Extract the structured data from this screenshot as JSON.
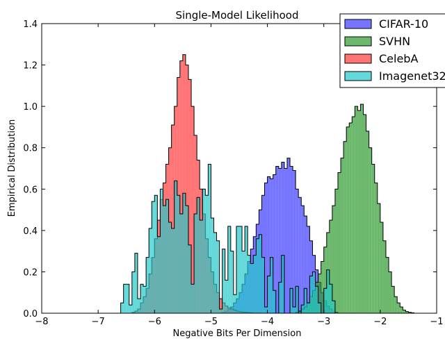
{
  "chart_data": {
    "type": "histogram",
    "title": "Single-Model Likelihood",
    "xlabel": "Negative Bits Per Dimension",
    "ylabel": "Empirical Distribution",
    "xlim": [
      -8,
      -1
    ],
    "ylim": [
      0,
      1.4
    ],
    "xticks": [
      -8,
      -7,
      -6,
      -5,
      -4,
      -3,
      -2,
      -1
    ],
    "xtick_labels": [
      "−8",
      "−7",
      "−6",
      "−5",
      "−4",
      "−3",
      "−2",
      "−1"
    ],
    "yticks": [
      0,
      0.2,
      0.4,
      0.6,
      0.8,
      1.0,
      1.2,
      1.4
    ],
    "ytick_labels": [
      "0.0",
      "0.2",
      "0.4",
      "0.6",
      "0.8",
      "1.0",
      "1.2",
      "1.4"
    ],
    "legend_position": "top-right",
    "series": [
      {
        "name": "CIFAR-10",
        "color": "#3b3bff",
        "edges": [
          -4.8,
          -4.75,
          -4.7,
          -4.65,
          -4.6,
          -4.55,
          -4.5,
          -4.45,
          -4.4,
          -4.35,
          -4.3,
          -4.25,
          -4.2,
          -4.15,
          -4.1,
          -4.05,
          -4.0,
          -3.95,
          -3.9,
          -3.85,
          -3.8,
          -3.75,
          -3.7,
          -3.65,
          -3.6,
          -3.55,
          -3.5,
          -3.45,
          -3.4,
          -3.35,
          -3.3,
          -3.25,
          -3.2,
          -3.15,
          -3.1,
          -3.05,
          -3.0,
          -2.95,
          -2.9,
          -2.85,
          -2.8,
          -2.75
        ],
        "values": [
          0.005,
          0.01,
          0.02,
          0.03,
          0.05,
          0.07,
          0.1,
          0.14,
          0.19,
          0.25,
          0.31,
          0.37,
          0.43,
          0.5,
          0.57,
          0.63,
          0.66,
          0.65,
          0.67,
          0.71,
          0.7,
          0.73,
          0.7,
          0.75,
          0.71,
          0.69,
          0.6,
          0.56,
          0.52,
          0.47,
          0.42,
          0.35,
          0.28,
          0.21,
          0.15,
          0.1,
          0.06,
          0.035,
          0.02,
          0.01,
          0.005
        ]
      },
      {
        "name": "SVHN",
        "color": "#2e9a2e",
        "edges": [
          -3.5,
          -3.45,
          -3.4,
          -3.35,
          -3.3,
          -3.25,
          -3.2,
          -3.15,
          -3.1,
          -3.05,
          -3.0,
          -2.95,
          -2.9,
          -2.85,
          -2.8,
          -2.75,
          -2.7,
          -2.65,
          -2.6,
          -2.55,
          -2.5,
          -2.45,
          -2.4,
          -2.35,
          -2.3,
          -2.25,
          -2.2,
          -2.15,
          -2.1,
          -2.05,
          -2.0,
          -1.95,
          -1.9,
          -1.85,
          -1.8,
          -1.75,
          -1.7,
          -1.65,
          -1.6,
          -1.55,
          -1.5,
          -1.45,
          -1.4
        ],
        "values": [
          0.005,
          0.01,
          0.02,
          0.03,
          0.05,
          0.08,
          0.11,
          0.15,
          0.19,
          0.25,
          0.32,
          0.39,
          0.45,
          0.52,
          0.6,
          0.68,
          0.75,
          0.83,
          0.9,
          0.92,
          0.95,
          1.0,
          0.98,
          1.01,
          0.96,
          0.88,
          0.8,
          0.72,
          0.63,
          0.53,
          0.44,
          0.35,
          0.27,
          0.2,
          0.13,
          0.08,
          0.05,
          0.03,
          0.015,
          0.008,
          0.004,
          0.002
        ]
      },
      {
        "name": "CelebA",
        "color": "#ff3b3b",
        "edges": [
          -6.4,
          -6.35,
          -6.3,
          -6.25,
          -6.2,
          -6.15,
          -6.1,
          -6.05,
          -6.0,
          -5.95,
          -5.9,
          -5.85,
          -5.8,
          -5.75,
          -5.7,
          -5.65,
          -5.6,
          -5.55,
          -5.5,
          -5.45,
          -5.4,
          -5.35,
          -5.3,
          -5.25,
          -5.2,
          -5.15,
          -5.1,
          -5.05,
          -5.0,
          -4.95,
          -4.9,
          -4.85,
          -4.8,
          -4.75,
          -4.7,
          -4.65,
          -4.6,
          -4.55,
          -4.5,
          -4.45,
          -4.4,
          -4.35,
          -4.3,
          -4.25,
          -4.2,
          -4.15,
          -4.1
        ],
        "values": [
          0.004,
          0.01,
          0.02,
          0.05,
          0.08,
          0.12,
          0.19,
          0.27,
          0.36,
          0.45,
          0.55,
          0.63,
          0.72,
          0.8,
          0.91,
          1.0,
          1.14,
          1.22,
          1.25,
          1.2,
          1.13,
          1.0,
          0.86,
          0.74,
          0.6,
          0.48,
          0.36,
          0.27,
          0.2,
          0.14,
          0.1,
          0.07,
          0.05,
          0.035,
          0.025,
          0.02,
          0.015,
          0.01,
          0.007,
          0.005,
          0.004,
          0.003,
          0.002,
          0.001,
          0.001,
          0.001
        ]
      },
      {
        "name": "Imagenet32",
        "color": "#23c9c9",
        "edges": [
          -6.6,
          -6.55,
          -6.5,
          -6.45,
          -6.4,
          -6.35,
          -6.3,
          -6.25,
          -6.2,
          -6.15,
          -6.1,
          -6.05,
          -6.0,
          -5.95,
          -5.9,
          -5.85,
          -5.8,
          -5.75,
          -5.7,
          -5.65,
          -5.6,
          -5.55,
          -5.5,
          -5.45,
          -5.4,
          -5.35,
          -5.3,
          -5.25,
          -5.2,
          -5.15,
          -5.1,
          -5.05,
          -5.0,
          -4.95,
          -4.9,
          -4.85,
          -4.8,
          -4.75,
          -4.7,
          -4.65,
          -4.6,
          -4.55,
          -4.5,
          -4.45,
          -4.4,
          -4.35,
          -4.3,
          -4.25,
          -4.2,
          -4.15,
          -4.1,
          -4.05,
          -4.0,
          -3.95,
          -3.9,
          -3.85,
          -3.8,
          -3.75,
          -3.7,
          -3.65,
          -3.6,
          -3.55,
          -3.5,
          -3.45,
          -3.4,
          -3.35,
          -3.3,
          -3.25,
          -3.2,
          -3.15,
          -3.1,
          -3.05,
          -3.0,
          -2.95,
          -2.9,
          -2.85,
          -2.8
        ],
        "values": [
          0.05,
          0.14,
          0.14,
          0.04,
          0.2,
          0.29,
          0.07,
          0.14,
          0.13,
          0.27,
          0.41,
          0.54,
          0.57,
          0.37,
          0.6,
          0.52,
          0.55,
          0.44,
          0.41,
          0.64,
          0.57,
          0.48,
          0.58,
          0.52,
          0.33,
          0.14,
          0.48,
          0.56,
          0.45,
          0.6,
          0.57,
          0.72,
          0.46,
          0.39,
          0.35,
          0.02,
          0.31,
          0.16,
          0.42,
          0.3,
          0.09,
          0.42,
          0.42,
          0.3,
          0.42,
          0.28,
          0.24,
          0.28,
          0.36,
          0.38,
          0.27,
          0.03,
          0.18,
          0.27,
          0.11,
          0.0,
          0.15,
          0.28,
          0.0,
          0.0,
          0.12,
          0.03,
          0.13,
          0.0,
          0.04,
          0.12,
          0.05,
          0.18,
          0.2,
          0.13,
          0.05,
          0.0,
          0.12,
          0.21,
          0.14,
          0.06
        ]
      }
    ]
  }
}
